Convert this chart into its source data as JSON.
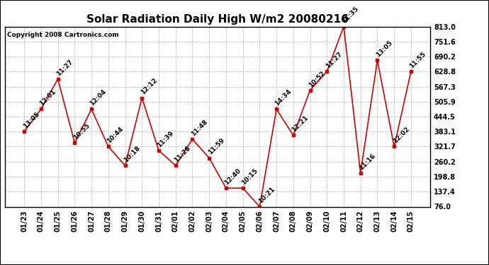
{
  "title": "Solar Radiation Daily High W/m2 20080216",
  "copyright": "Copyright 2008 Cartronics.com",
  "dates": [
    "01/23",
    "01/24",
    "01/25",
    "01/26",
    "01/27",
    "01/28",
    "01/29",
    "01/30",
    "01/31",
    "02/01",
    "02/02",
    "02/03",
    "02/04",
    "02/05",
    "02/06",
    "02/07",
    "02/08",
    "02/09",
    "02/10",
    "02/11",
    "02/12",
    "02/13",
    "02/14",
    "02/15"
  ],
  "values": [
    383.1,
    475.0,
    598.0,
    337.0,
    475.0,
    321.7,
    244.0,
    521.0,
    306.0,
    244.0,
    352.0,
    275.0,
    152.0,
    152.0,
    76.0,
    475.0,
    368.0,
    552.0,
    628.8,
    813.0,
    214.0,
    675.0,
    321.7,
    628.8
  ],
  "times": [
    "13:05",
    "12:01",
    "11:27",
    "10:55",
    "12:04",
    "10:44",
    "10:18",
    "12:12",
    "11:39",
    "11:28",
    "11:48",
    "11:59",
    "12:40",
    "10:15",
    "10:21",
    "14:34",
    "12:21",
    "10:52",
    "11:27",
    "11:35",
    "11:16",
    "13:05",
    "12:02",
    "11:55"
  ],
  "ylim": [
    76.0,
    813.0
  ],
  "yticks": [
    76.0,
    137.4,
    198.8,
    260.2,
    321.7,
    383.1,
    444.5,
    505.9,
    567.3,
    628.8,
    690.2,
    751.6,
    813.0
  ],
  "line_color": "#cc0000",
  "marker_color": "#cc0000",
  "background_color": "#ffffff",
  "plot_background": "#ffffff",
  "grid_color": "#bbbbbb",
  "title_fontsize": 11,
  "tick_fontsize": 7,
  "label_fontsize": 6.5,
  "copyright_fontsize": 6.5
}
